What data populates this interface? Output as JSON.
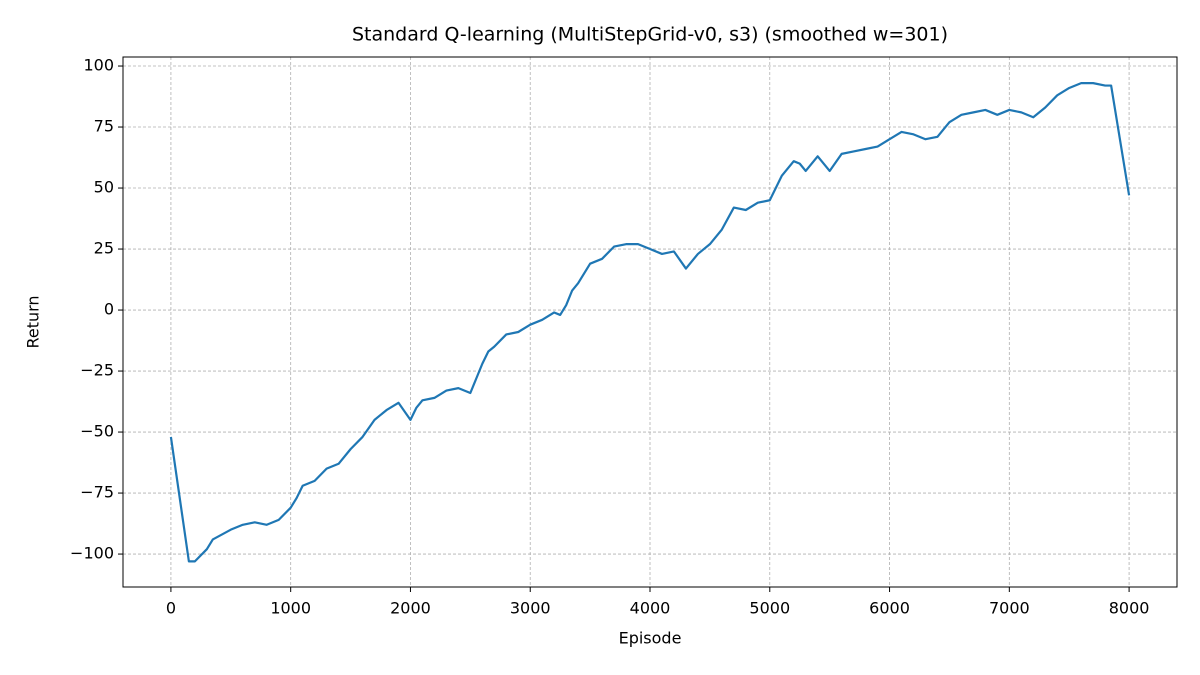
{
  "chart_data": {
    "type": "line",
    "title": "Standard Q-learning (MultiStepGrid-v0, s3) (smoothed w=301)",
    "x_label": "Episode",
    "y_label": "Return",
    "x": [
      0,
      150,
      200,
      300,
      350,
      500,
      600,
      700,
      800,
      900,
      1000,
      1050,
      1100,
      1200,
      1300,
      1400,
      1500,
      1600,
      1700,
      1800,
      1900,
      2000,
      2050,
      2100,
      2200,
      2300,
      2400,
      2500,
      2550,
      2600,
      2650,
      2700,
      2800,
      2900,
      3000,
      3100,
      3200,
      3250,
      3300,
      3350,
      3400,
      3500,
      3600,
      3700,
      3800,
      3900,
      4000,
      4100,
      4200,
      4300,
      4400,
      4500,
      4600,
      4700,
      4800,
      4900,
      5000,
      5100,
      5200,
      5250,
      5300,
      5400,
      5500,
      5600,
      5700,
      5800,
      5900,
      6000,
      6100,
      6200,
      6300,
      6400,
      6500,
      6600,
      6700,
      6800,
      6900,
      7000,
      7100,
      7200,
      7300,
      7400,
      7500,
      7600,
      7700,
      7800,
      7850,
      8000
    ],
    "values": [
      -52,
      -103,
      -103,
      -98,
      -94,
      -90,
      -88,
      -87,
      -88,
      -86,
      -81,
      -77,
      -72,
      -70,
      -65,
      -63,
      -57,
      -52,
      -45,
      -41,
      -38,
      -45,
      -40,
      -37,
      -36,
      -33,
      -32,
      -34,
      -28,
      -22,
      -17,
      -15,
      -10,
      -9,
      -6,
      -4,
      -1,
      -2,
      2,
      8,
      11,
      19,
      21,
      26,
      27,
      27,
      25,
      23,
      24,
      17,
      23,
      27,
      33,
      42,
      41,
      44,
      45,
      55,
      61,
      60,
      57,
      63,
      57,
      64,
      65,
      66,
      67,
      70,
      73,
      72,
      70,
      71,
      77,
      80,
      81,
      82,
      80,
      82,
      81,
      79,
      83,
      88,
      91,
      93,
      93,
      92,
      92,
      47
    ],
    "color": "#1f77b4",
    "xlim": [
      -400,
      8400
    ],
    "ylim": [
      -113.5,
      103.7
    ],
    "xticks": [
      0,
      1000,
      2000,
      3000,
      4000,
      5000,
      6000,
      7000,
      8000
    ],
    "yticks": [
      {
        "value": -100,
        "label": "−100"
      },
      {
        "value": -75,
        "label": "−75"
      },
      {
        "value": -50,
        "label": "−50"
      },
      {
        "value": -25,
        "label": "−25"
      },
      0,
      25,
      50,
      75,
      100
    ],
    "grid": true
  }
}
